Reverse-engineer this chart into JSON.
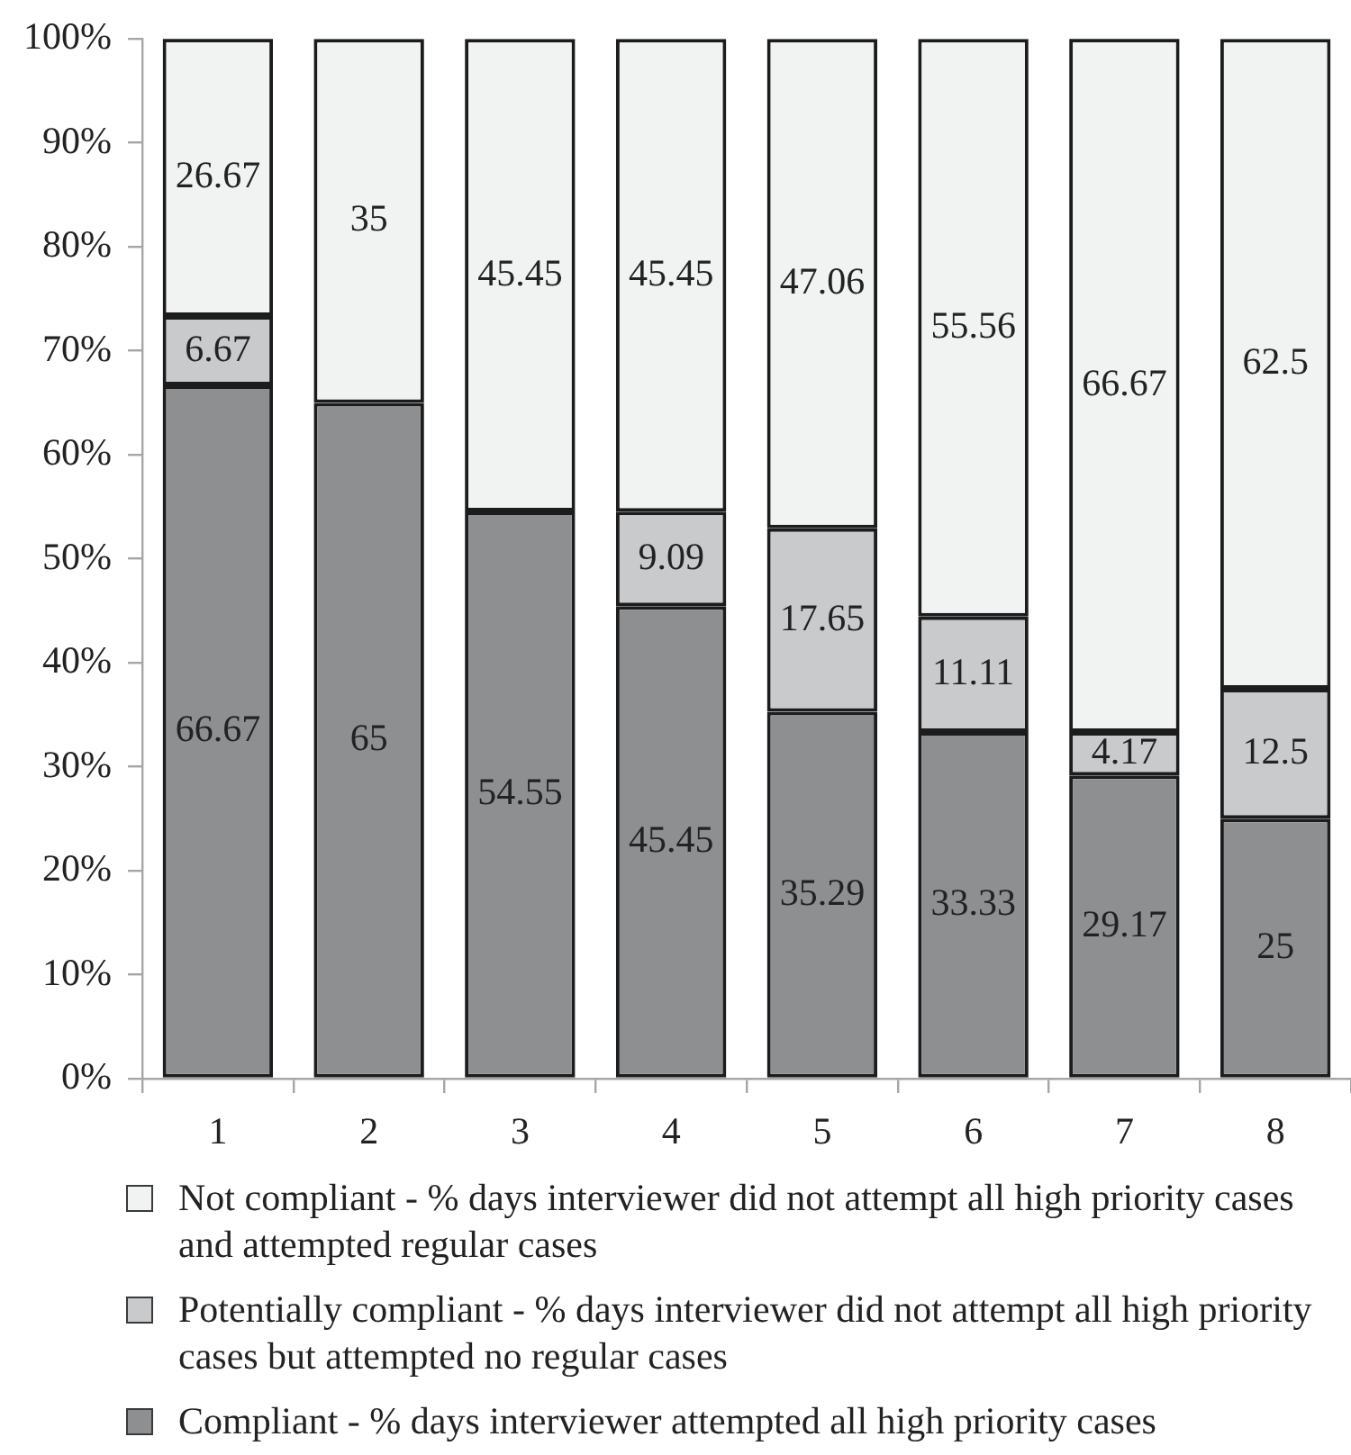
{
  "chart_data": {
    "type": "bar",
    "stacked": true,
    "categories": [
      "1",
      "2",
      "3",
      "4",
      "5",
      "6",
      "7",
      "8"
    ],
    "series": [
      {
        "name": "Compliant - % days interviewer attempted all high priority cases",
        "color": "#8e8f91",
        "values": [
          66.67,
          65,
          54.55,
          45.45,
          35.29,
          33.33,
          29.17,
          25
        ]
      },
      {
        "name": "Potentially compliant - % days interviewer did not attempt all high priority cases but attempted no regular cases",
        "color": "#c9cacc",
        "values": [
          6.67,
          null,
          null,
          9.09,
          17.65,
          11.11,
          4.17,
          12.5
        ]
      },
      {
        "name": "Not compliant - % days interviewer did not attempt all high priority cases and attempted regular cases",
        "color": "#f1f2f2",
        "values": [
          26.67,
          35,
          45.45,
          45.45,
          47.06,
          55.56,
          66.67,
          62.5
        ]
      }
    ],
    "ylim": [
      0,
      100
    ],
    "yticks": [
      {
        "value": 0,
        "label": "0%"
      },
      {
        "value": 10,
        "label": "10%"
      },
      {
        "value": 20,
        "label": "20%"
      },
      {
        "value": 30,
        "label": "30%"
      },
      {
        "value": 40,
        "label": "40%"
      },
      {
        "value": 50,
        "label": "50%"
      },
      {
        "value": 60,
        "label": "60%"
      },
      {
        "value": 70,
        "label": "70%"
      },
      {
        "value": 80,
        "label": "80%"
      },
      {
        "value": 90,
        "label": "90%"
      },
      {
        "value": 100,
        "label": "100%"
      }
    ],
    "data_labels": true,
    "legend": "bottom"
  }
}
